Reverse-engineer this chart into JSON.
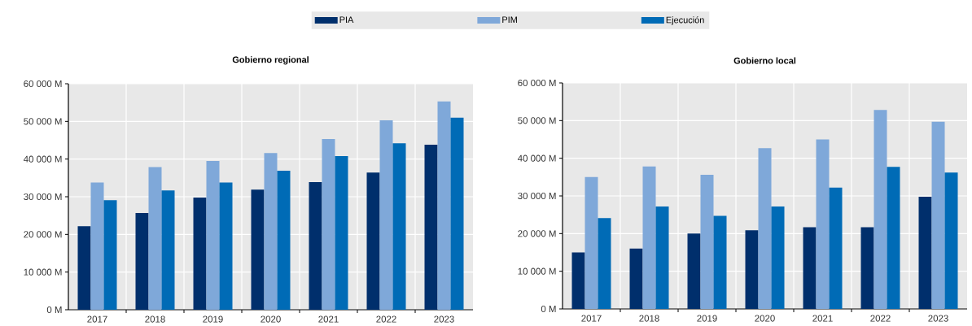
{
  "chart_data": [
    {
      "type": "bar",
      "title": "Gobierno regional",
      "categories": [
        "2017",
        "2018",
        "2019",
        "2020",
        "2021",
        "2022",
        "2023"
      ],
      "series": [
        {
          "name": "PIA",
          "color": "#002f6c",
          "values": [
            22200,
            25700,
            29800,
            31900,
            33900,
            36400,
            43800
          ]
        },
        {
          "name": "PIM",
          "color": "#7fa8d9",
          "values": [
            33800,
            37900,
            39500,
            41600,
            45300,
            50300,
            55300
          ]
        },
        {
          "name": "Ejecución",
          "color": "#006bb6",
          "values": [
            29100,
            31700,
            33800,
            36900,
            40800,
            44200,
            51000
          ]
        }
      ],
      "ylim": [
        0,
        60000
      ],
      "yticks": [
        {
          "value": 0,
          "label": "0 M"
        },
        {
          "value": 10000,
          "label": "10 000 M"
        },
        {
          "value": 20000,
          "label": "20 000 M"
        },
        {
          "value": 30000,
          "label": "30 000 M"
        },
        {
          "value": 40000,
          "label": "40 000 M"
        },
        {
          "value": 50000,
          "label": "50 000 M"
        },
        {
          "value": 60000,
          "label": "60 000 M"
        }
      ],
      "grid": true,
      "legend": "top"
    },
    {
      "type": "bar",
      "title": "Gobierno local",
      "categories": [
        "2017",
        "2018",
        "2019",
        "2020",
        "2021",
        "2022",
        "2023"
      ],
      "series": [
        {
          "color": "#002f6c",
          "values": [
            15000,
            16000,
            20000,
            20900,
            21700,
            21700,
            29800
          ]
        },
        {
          "color": "#7fa8d9",
          "values": [
            35000,
            37800,
            35600,
            42700,
            45000,
            52800,
            49700
          ]
        },
        {
          "color": "#006bb6",
          "values": [
            24100,
            27200,
            24700,
            27200,
            32200,
            37700,
            36200
          ]
        }
      ],
      "ylim": [
        0,
        60000
      ],
      "yticks": [
        {
          "value": 0,
          "label": "0 M"
        },
        {
          "value": 10000,
          "label": "10 000 M"
        },
        {
          "value": 20000,
          "label": "20 000 M"
        },
        {
          "value": 30000,
          "label": "30 000 M"
        },
        {
          "value": 40000,
          "label": "40 000 M"
        },
        {
          "value": 50000,
          "label": "50 000 M"
        },
        {
          "value": 60000,
          "label": "60 000 M"
        }
      ],
      "grid": true
    }
  ]
}
